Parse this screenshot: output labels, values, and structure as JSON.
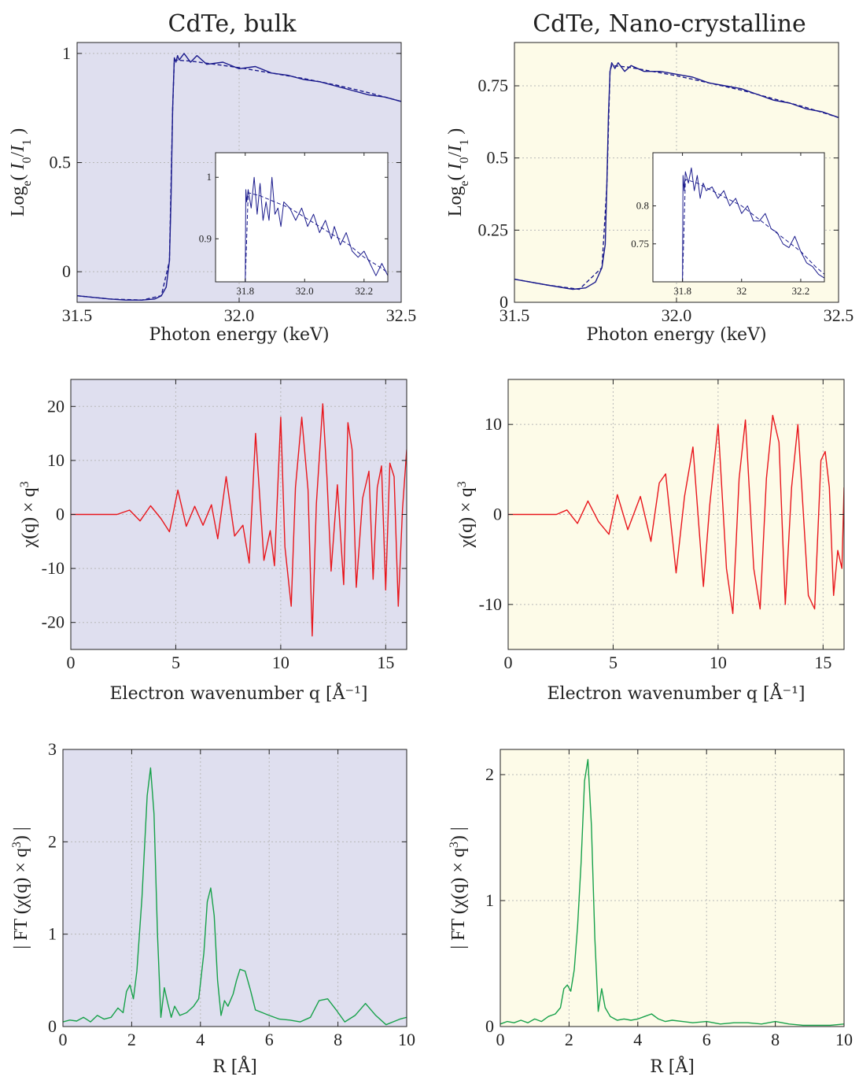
{
  "colors": {
    "bulk_bg": "#dfdfef",
    "nano_bg": "#fdfbe8",
    "xanes_line": "#1a1a8c",
    "exafs_line": "#e8161c",
    "ft_line": "#17a14a",
    "grid": "#b8b8b8"
  },
  "columns": {
    "bulk_title": "CdTe, bulk",
    "nano_title": "CdTe, Nano-crystalline"
  },
  "chart_data": [
    {
      "id": "xanes_bulk",
      "type": "line",
      "xlabel": "Photon energy (keV)",
      "ylabel": "Log_e( I_0/I_1 )",
      "xlim": [
        31.5,
        32.5
      ],
      "ylim": [
        -0.14,
        1.05
      ],
      "xticks": [
        31.5,
        32.0,
        32.5
      ],
      "xtick_labels": [
        "31.5",
        "32.0",
        "32.5"
      ],
      "yticks": [
        0,
        0.5,
        1
      ],
      "ytick_labels": [
        "0",
        "0.5",
        "1"
      ],
      "grid": true,
      "series": [
        {
          "style": "solid",
          "x": [
            31.5,
            31.6,
            31.65,
            31.7,
            31.74,
            31.76,
            31.775,
            31.785,
            31.79,
            31.795,
            31.8,
            31.805,
            31.81,
            31.815,
            31.83,
            31.85,
            31.87,
            31.9,
            31.95,
            32.0,
            32.05,
            32.1,
            32.15,
            32.2,
            32.25,
            32.3,
            32.35,
            32.4,
            32.45,
            32.5
          ],
          "y": [
            -0.11,
            -0.125,
            -0.13,
            -0.13,
            -0.125,
            -0.11,
            -0.07,
            0.05,
            0.35,
            0.75,
            0.98,
            0.96,
            0.99,
            0.97,
            1.0,
            0.96,
            0.99,
            0.95,
            0.96,
            0.93,
            0.94,
            0.91,
            0.9,
            0.88,
            0.87,
            0.85,
            0.83,
            0.81,
            0.8,
            0.78
          ]
        },
        {
          "style": "dashed",
          "x": [
            31.5,
            31.6,
            31.7,
            31.76,
            31.785,
            31.795,
            31.8,
            31.85,
            31.9,
            32.0,
            32.1,
            32.2,
            32.3,
            32.4,
            32.5
          ],
          "y": [
            -0.11,
            -0.125,
            -0.13,
            -0.11,
            0.05,
            0.75,
            0.97,
            0.965,
            0.955,
            0.935,
            0.91,
            0.885,
            0.855,
            0.82,
            0.78
          ]
        }
      ],
      "inset": {
        "xlim": [
          31.7,
          32.28
        ],
        "ylim": [
          0.83,
          1.04
        ],
        "xticks": [
          31.8,
          32.0,
          32.2
        ],
        "xtick_labels": [
          "31.8",
          "32.0",
          "32.2"
        ],
        "yticks": [
          0.9,
          1
        ],
        "ytick_labels": [
          "0.9",
          "1"
        ],
        "series": [
          {
            "style": "solid",
            "x": [
              31.8,
              31.802,
              31.805,
              31.81,
              31.82,
              31.83,
              31.84,
              31.85,
              31.86,
              31.87,
              31.88,
              31.89,
              31.9,
              31.91,
              31.92,
              31.93,
              31.95,
              31.97,
              31.99,
              32.01,
              32.03,
              32.05,
              32.07,
              32.09,
              32.1,
              32.12,
              32.14,
              32.16,
              32.18,
              32.2,
              32.22,
              32.24,
              32.26,
              32.28
            ],
            "y": [
              0.83,
              0.98,
              0.96,
              0.98,
              0.95,
              1.0,
              0.94,
              0.99,
              0.93,
              0.96,
              0.93,
              1.0,
              0.94,
              0.95,
              0.92,
              0.96,
              0.95,
              0.93,
              0.95,
              0.92,
              0.94,
              0.91,
              0.93,
              0.9,
              0.92,
              0.89,
              0.91,
              0.88,
              0.87,
              0.88,
              0.86,
              0.84,
              0.86,
              0.84
            ]
          },
          {
            "style": "dashed",
            "x": [
              31.8,
              31.81,
              31.85,
              31.9,
              31.95,
              32.0,
              32.05,
              32.1,
              32.15,
              32.2,
              32.25,
              32.28
            ],
            "y": [
              0.83,
              0.975,
              0.97,
              0.96,
              0.95,
              0.935,
              0.92,
              0.905,
              0.89,
              0.87,
              0.855,
              0.845
            ]
          }
        ]
      }
    },
    {
      "id": "xanes_nano",
      "type": "line",
      "xlabel": "Photon energy (keV)",
      "ylabel": "Log_e( I_0/I_1 )",
      "xlim": [
        31.5,
        32.5
      ],
      "ylim": [
        0,
        0.9
      ],
      "xticks": [
        31.5,
        32.0,
        32.5
      ],
      "xtick_labels": [
        "31.5",
        "32.0",
        "32.5"
      ],
      "yticks": [
        0,
        0.25,
        0.5,
        0.75
      ],
      "ytick_labels": [
        "0",
        "0.25",
        "0.5",
        "0.75"
      ],
      "grid": true,
      "series": [
        {
          "style": "solid",
          "x": [
            31.5,
            31.6,
            31.68,
            31.72,
            31.75,
            31.77,
            31.78,
            31.785,
            31.79,
            31.795,
            31.8,
            31.81,
            31.82,
            31.84,
            31.86,
            31.9,
            31.95,
            32.0,
            32.05,
            32.1,
            32.15,
            32.2,
            32.25,
            32.3,
            32.35,
            32.4,
            32.45,
            32.5
          ],
          "y": [
            0.08,
            0.06,
            0.045,
            0.05,
            0.07,
            0.12,
            0.2,
            0.4,
            0.65,
            0.8,
            0.83,
            0.81,
            0.83,
            0.8,
            0.82,
            0.8,
            0.8,
            0.79,
            0.78,
            0.76,
            0.75,
            0.74,
            0.72,
            0.7,
            0.69,
            0.67,
            0.66,
            0.64
          ]
        },
        {
          "style": "dashed",
          "x": [
            31.5,
            31.6,
            31.7,
            31.77,
            31.785,
            31.795,
            31.8,
            31.85,
            31.9,
            32.0,
            32.1,
            32.2,
            32.3,
            32.4,
            32.5
          ],
          "y": [
            0.08,
            0.06,
            0.045,
            0.12,
            0.4,
            0.8,
            0.82,
            0.815,
            0.805,
            0.785,
            0.76,
            0.735,
            0.705,
            0.675,
            0.64
          ]
        }
      ],
      "inset": {
        "xlim": [
          31.7,
          32.28
        ],
        "ylim": [
          0.7,
          0.87
        ],
        "xticks": [
          31.8,
          32.0,
          32.2
        ],
        "xtick_labels": [
          "31.8",
          "32",
          "32.2"
        ],
        "yticks": [
          0.75,
          0.8
        ],
        "ytick_labels": [
          "0.75",
          "0.8"
        ],
        "series": [
          {
            "style": "solid",
            "x": [
              31.8,
              31.802,
              31.806,
              31.81,
              31.82,
              31.83,
              31.84,
              31.85,
              31.86,
              31.87,
              31.88,
              31.9,
              31.92,
              31.94,
              31.96,
              31.98,
              32.0,
              32.02,
              32.04,
              32.06,
              32.08,
              32.1,
              32.12,
              32.14,
              32.16,
              32.18,
              32.2,
              32.22,
              32.24,
              32.26,
              32.28
            ],
            "y": [
              0.7,
              0.84,
              0.82,
              0.845,
              0.83,
              0.85,
              0.82,
              0.84,
              0.81,
              0.83,
              0.82,
              0.825,
              0.81,
              0.82,
              0.8,
              0.81,
              0.79,
              0.8,
              0.78,
              0.78,
              0.79,
              0.77,
              0.765,
              0.75,
              0.745,
              0.76,
              0.74,
              0.725,
              0.72,
              0.71,
              0.705
            ]
          },
          {
            "style": "dashed",
            "x": [
              31.8,
              31.81,
              31.85,
              31.9,
              31.95,
              32.0,
              32.05,
              32.1,
              32.15,
              32.2,
              32.25,
              32.28
            ],
            "y": [
              0.7,
              0.835,
              0.83,
              0.82,
              0.81,
              0.8,
              0.785,
              0.77,
              0.755,
              0.74,
              0.72,
              0.71
            ]
          }
        ]
      }
    },
    {
      "id": "exafs_bulk",
      "type": "line",
      "xlabel": "Electron wavenumber q [Å⁻¹]",
      "ylabel": "χ(q) × q³",
      "xlim": [
        0,
        16
      ],
      "ylim": [
        -25,
        25
      ],
      "xticks": [
        0,
        5,
        10,
        15
      ],
      "xtick_labels": [
        "0",
        "5",
        "10",
        "15"
      ],
      "yticks": [
        -20,
        -10,
        0,
        10,
        20
      ],
      "ytick_labels": [
        "-20",
        "-10",
        "0",
        "10",
        "20"
      ],
      "grid": true,
      "series": [
        {
          "style": "solid",
          "x": [
            0,
            1.5,
            2.2,
            2.8,
            3.3,
            3.8,
            4.3,
            4.7,
            5.1,
            5.5,
            5.9,
            6.3,
            6.7,
            7.0,
            7.4,
            7.8,
            8.2,
            8.5,
            8.8,
            9.2,
            9.5,
            9.7,
            10.0,
            10.2,
            10.5,
            10.7,
            11.0,
            11.3,
            11.5,
            11.7,
            12.0,
            12.2,
            12.4,
            12.7,
            13.0,
            13.2,
            13.4,
            13.6,
            13.9,
            14.2,
            14.4,
            14.6,
            14.8,
            15.0,
            15.2,
            15.4,
            15.6,
            15.8,
            16.0
          ],
          "y": [
            0,
            0,
            0,
            0.8,
            -1.2,
            1.6,
            -0.8,
            -3.2,
            4.5,
            -2.2,
            1.5,
            -2.0,
            1.8,
            -4.5,
            7.0,
            -4.0,
            -2.0,
            -9.0,
            15.0,
            -8.5,
            -3.0,
            -9.5,
            18.0,
            -6.0,
            -17.0,
            5.0,
            18.0,
            4.5,
            -22.5,
            2.0,
            20.5,
            7.0,
            -10.5,
            5.5,
            -13.0,
            17.0,
            12.0,
            -13.5,
            3.0,
            8.0,
            -12.0,
            5.0,
            9.0,
            -14.0,
            9.5,
            7.0,
            -17.0,
            1.0,
            12.0
          ]
        }
      ]
    },
    {
      "id": "exafs_nano",
      "type": "line",
      "xlabel": "Electron wavenumber q [Å⁻¹]",
      "ylabel": "χ(q) × q³",
      "xlim": [
        0,
        16
      ],
      "ylim": [
        -15,
        15
      ],
      "xticks": [
        0,
        5,
        10,
        15
      ],
      "xtick_labels": [
        "0",
        "5",
        "10",
        "15"
      ],
      "yticks": [
        -10,
        0,
        10
      ],
      "ytick_labels": [
        "-10",
        "0",
        "10"
      ],
      "grid": true,
      "series": [
        {
          "style": "solid",
          "x": [
            0,
            1.5,
            2.3,
            2.8,
            3.3,
            3.8,
            4.3,
            4.8,
            5.2,
            5.7,
            6.3,
            6.8,
            7.2,
            7.5,
            8.0,
            8.4,
            8.8,
            9.3,
            9.6,
            10.0,
            10.4,
            10.7,
            11.0,
            11.3,
            11.7,
            12.0,
            12.3,
            12.6,
            12.9,
            13.2,
            13.5,
            13.8,
            14.0,
            14.3,
            14.6,
            14.9,
            15.1,
            15.3,
            15.5,
            15.7,
            15.9,
            16.0
          ],
          "y": [
            0,
            0,
            0,
            0.5,
            -1.0,
            1.5,
            -0.8,
            -2.2,
            2.2,
            -1.7,
            2.0,
            -3.0,
            3.5,
            4.5,
            -6.5,
            2.0,
            7.5,
            -8.0,
            1.0,
            10.0,
            -6.0,
            -11.0,
            4.0,
            10.5,
            -6.0,
            -10.5,
            4.0,
            11.0,
            8.0,
            -10.0,
            3.0,
            10.0,
            2.5,
            -9.0,
            -10.5,
            6.0,
            7.0,
            3.0,
            -9.0,
            -4.0,
            -6.0,
            3.0
          ]
        }
      ]
    },
    {
      "id": "ft_bulk",
      "type": "line",
      "xlabel": "R [Å]",
      "ylabel": "| FT (χ(q) × q³) |",
      "xlim": [
        0,
        10
      ],
      "ylim": [
        0,
        3
      ],
      "xticks": [
        0,
        2,
        4,
        6,
        8,
        10
      ],
      "xtick_labels": [
        "0",
        "2",
        "4",
        "6",
        "8",
        "10"
      ],
      "yticks": [
        0,
        1,
        2,
        3
      ],
      "ytick_labels": [
        "0",
        "1",
        "2",
        "3"
      ],
      "grid": true,
      "series": [
        {
          "style": "solid",
          "x": [
            0,
            0.2,
            0.4,
            0.6,
            0.8,
            1.0,
            1.2,
            1.4,
            1.6,
            1.75,
            1.85,
            1.95,
            2.05,
            2.15,
            2.3,
            2.45,
            2.55,
            2.65,
            2.75,
            2.85,
            2.95,
            3.05,
            3.15,
            3.25,
            3.4,
            3.6,
            3.8,
            3.95,
            4.1,
            4.2,
            4.3,
            4.4,
            4.5,
            4.6,
            4.7,
            4.8,
            4.95,
            5.05,
            5.15,
            5.3,
            5.45,
            5.6,
            5.8,
            6.0,
            6.3,
            6.6,
            6.9,
            7.2,
            7.45,
            7.7,
            7.95,
            8.2,
            8.5,
            8.8,
            9.1,
            9.4,
            9.6,
            9.8,
            10.0
          ],
          "y": [
            0.05,
            0.07,
            0.06,
            0.1,
            0.05,
            0.12,
            0.08,
            0.1,
            0.2,
            0.15,
            0.38,
            0.45,
            0.3,
            0.6,
            1.4,
            2.5,
            2.8,
            2.3,
            1.0,
            0.1,
            0.42,
            0.25,
            0.1,
            0.22,
            0.12,
            0.15,
            0.22,
            0.3,
            0.8,
            1.35,
            1.5,
            1.2,
            0.5,
            0.12,
            0.28,
            0.22,
            0.35,
            0.5,
            0.62,
            0.6,
            0.4,
            0.18,
            0.15,
            0.12,
            0.08,
            0.07,
            0.05,
            0.1,
            0.28,
            0.3,
            0.18,
            0.05,
            0.12,
            0.25,
            0.12,
            0.02,
            0.05,
            0.08,
            0.1
          ]
        }
      ]
    },
    {
      "id": "ft_nano",
      "type": "line",
      "xlabel": "R [Å]",
      "ylabel": "| FT (χ(q) × q³) |",
      "xlim": [
        0,
        10
      ],
      "ylim": [
        0,
        2.2
      ],
      "xticks": [
        0,
        2,
        4,
        6,
        8,
        10
      ],
      "xtick_labels": [
        "0",
        "2",
        "4",
        "6",
        "8",
        "10"
      ],
      "yticks": [
        0,
        1,
        2
      ],
      "ytick_labels": [
        "0",
        "1",
        "2"
      ],
      "grid": true,
      "series": [
        {
          "style": "solid",
          "x": [
            0,
            0.2,
            0.4,
            0.6,
            0.8,
            1.0,
            1.2,
            1.4,
            1.6,
            1.75,
            1.85,
            1.95,
            2.05,
            2.15,
            2.25,
            2.35,
            2.45,
            2.55,
            2.65,
            2.75,
            2.85,
            2.95,
            3.05,
            3.2,
            3.4,
            3.6,
            3.8,
            4.0,
            4.2,
            4.4,
            4.6,
            4.8,
            5.0,
            5.3,
            5.6,
            6.0,
            6.4,
            6.8,
            7.2,
            7.6,
            8.0,
            8.4,
            8.8,
            9.2,
            9.6,
            10.0
          ],
          "y": [
            0.02,
            0.04,
            0.03,
            0.05,
            0.03,
            0.06,
            0.04,
            0.08,
            0.1,
            0.15,
            0.3,
            0.33,
            0.28,
            0.45,
            0.8,
            1.3,
            1.95,
            2.12,
            1.6,
            0.7,
            0.12,
            0.3,
            0.15,
            0.08,
            0.05,
            0.06,
            0.05,
            0.06,
            0.08,
            0.1,
            0.06,
            0.04,
            0.05,
            0.04,
            0.03,
            0.04,
            0.02,
            0.03,
            0.03,
            0.02,
            0.04,
            0.02,
            0.01,
            0.01,
            0.01,
            0.02
          ]
        }
      ]
    }
  ]
}
